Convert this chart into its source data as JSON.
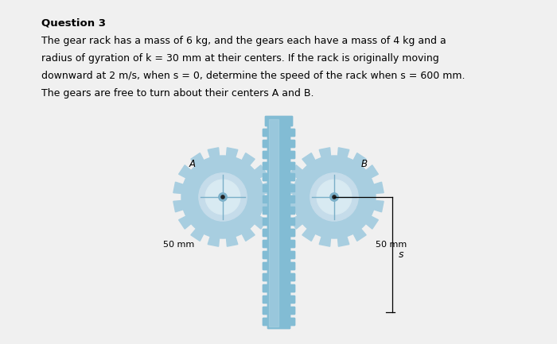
{
  "title": "Question 3",
  "body_lines": [
    "The gear rack has a mass of 6 kg, and the gears each have a mass of 4 kg and a",
    "radius of gyration of k = 30 mm at their centers. If the rack is originally moving",
    "downward at 2 m/s, when s = 0, determine the speed of the rack when s = 600 mm.",
    "The gears are free to turn about their centers A and B."
  ],
  "background_color": "#f0f0f0",
  "gear_fill": "#a8cee0",
  "gear_inner": "#c5dcea",
  "gear_inner2": "#d8eaf2",
  "gear_dark": "#7aafc8",
  "rack_fill": "#82bcd4",
  "rack_light": "#aad0e2",
  "label_A": "A",
  "label_B": "B",
  "label_left": "50 mm",
  "label_right": "50 mm",
  "label_s": "s",
  "title_fontsize": 9.5,
  "body_fontsize": 9,
  "diagram_label_fontsize": 8
}
